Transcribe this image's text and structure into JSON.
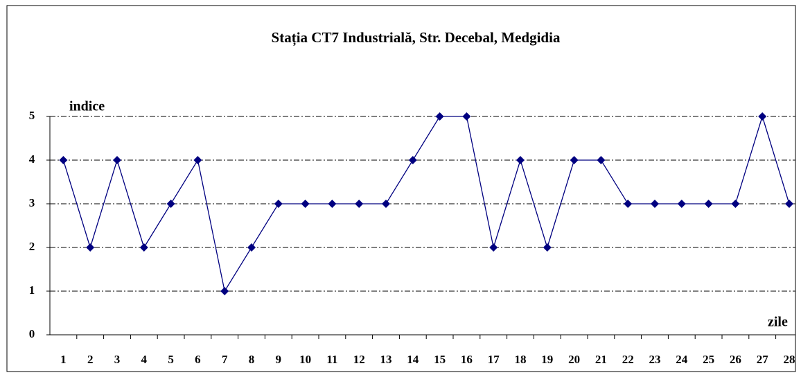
{
  "chart_data": {
    "type": "line",
    "title": "Stația CT7 Industrială, Str. Decebal, Medgidia",
    "y_label": "indice",
    "x_label": "zile",
    "categories": [
      "1",
      "2",
      "3",
      "4",
      "5",
      "6",
      "7",
      "8",
      "9",
      "10",
      "11",
      "12",
      "13",
      "14",
      "15",
      "16",
      "17",
      "18",
      "19",
      "20",
      "21",
      "22",
      "23",
      "24",
      "25",
      "26",
      "27",
      "28"
    ],
    "values": [
      4,
      2,
      4,
      2,
      3,
      4,
      1,
      2,
      3,
      3,
      3,
      3,
      3,
      4,
      5,
      5,
      2,
      4,
      2,
      4,
      4,
      3,
      3,
      3,
      3,
      3,
      5,
      3
    ],
    "color": "#000080",
    "ylim": [
      0,
      5
    ],
    "yticks": [
      0,
      1,
      2,
      3,
      4,
      5
    ],
    "grid": true
  }
}
